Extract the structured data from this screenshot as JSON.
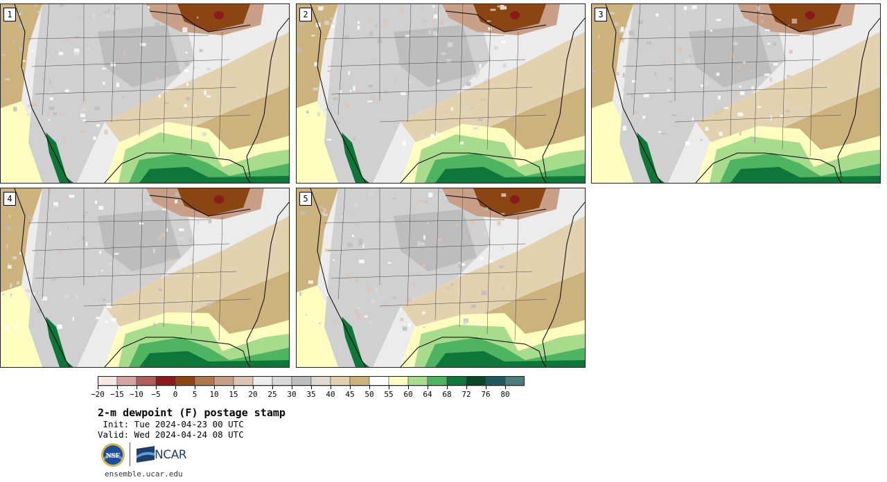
{
  "panels": [
    {
      "label": "1"
    },
    {
      "label": "2"
    },
    {
      "label": "3"
    },
    {
      "label": "4"
    },
    {
      "label": "5"
    }
  ],
  "colorbar": {
    "colors": [
      "#f5e6e6",
      "#d4a3a3",
      "#b05c5c",
      "#8b1a1a",
      "#8b4513",
      "#b07850",
      "#c8a088",
      "#dcc4b4",
      "#ececec",
      "#d8d8d8",
      "#bdbdbd",
      "#dedad0",
      "#e2d2b0",
      "#ccb27c",
      "#ffffff",
      "#fdfdc0",
      "#a6dc8c",
      "#4eb461",
      "#0e7638",
      "#0a4728",
      "#205860",
      "#4d7c7c"
    ],
    "tick_labels": [
      "-20",
      "-15",
      "-10",
      "-5",
      "0",
      "5",
      "10",
      "15",
      "20",
      "25",
      "30",
      "35",
      "40",
      "45",
      "50",
      "55",
      "60",
      "64",
      "68",
      "72",
      "76",
      "80"
    ]
  },
  "title": "2-m dewpoint (F) postage stamp",
  "init_text": " Init: Tue 2024-04-23 00 UTC",
  "valid_text": "Valid: Wed 2024-04-24 08 UTC",
  "logos": {
    "nsf": "NSF",
    "ncar": "NCAR"
  },
  "site_url": "ensemble.ucar.edu"
}
